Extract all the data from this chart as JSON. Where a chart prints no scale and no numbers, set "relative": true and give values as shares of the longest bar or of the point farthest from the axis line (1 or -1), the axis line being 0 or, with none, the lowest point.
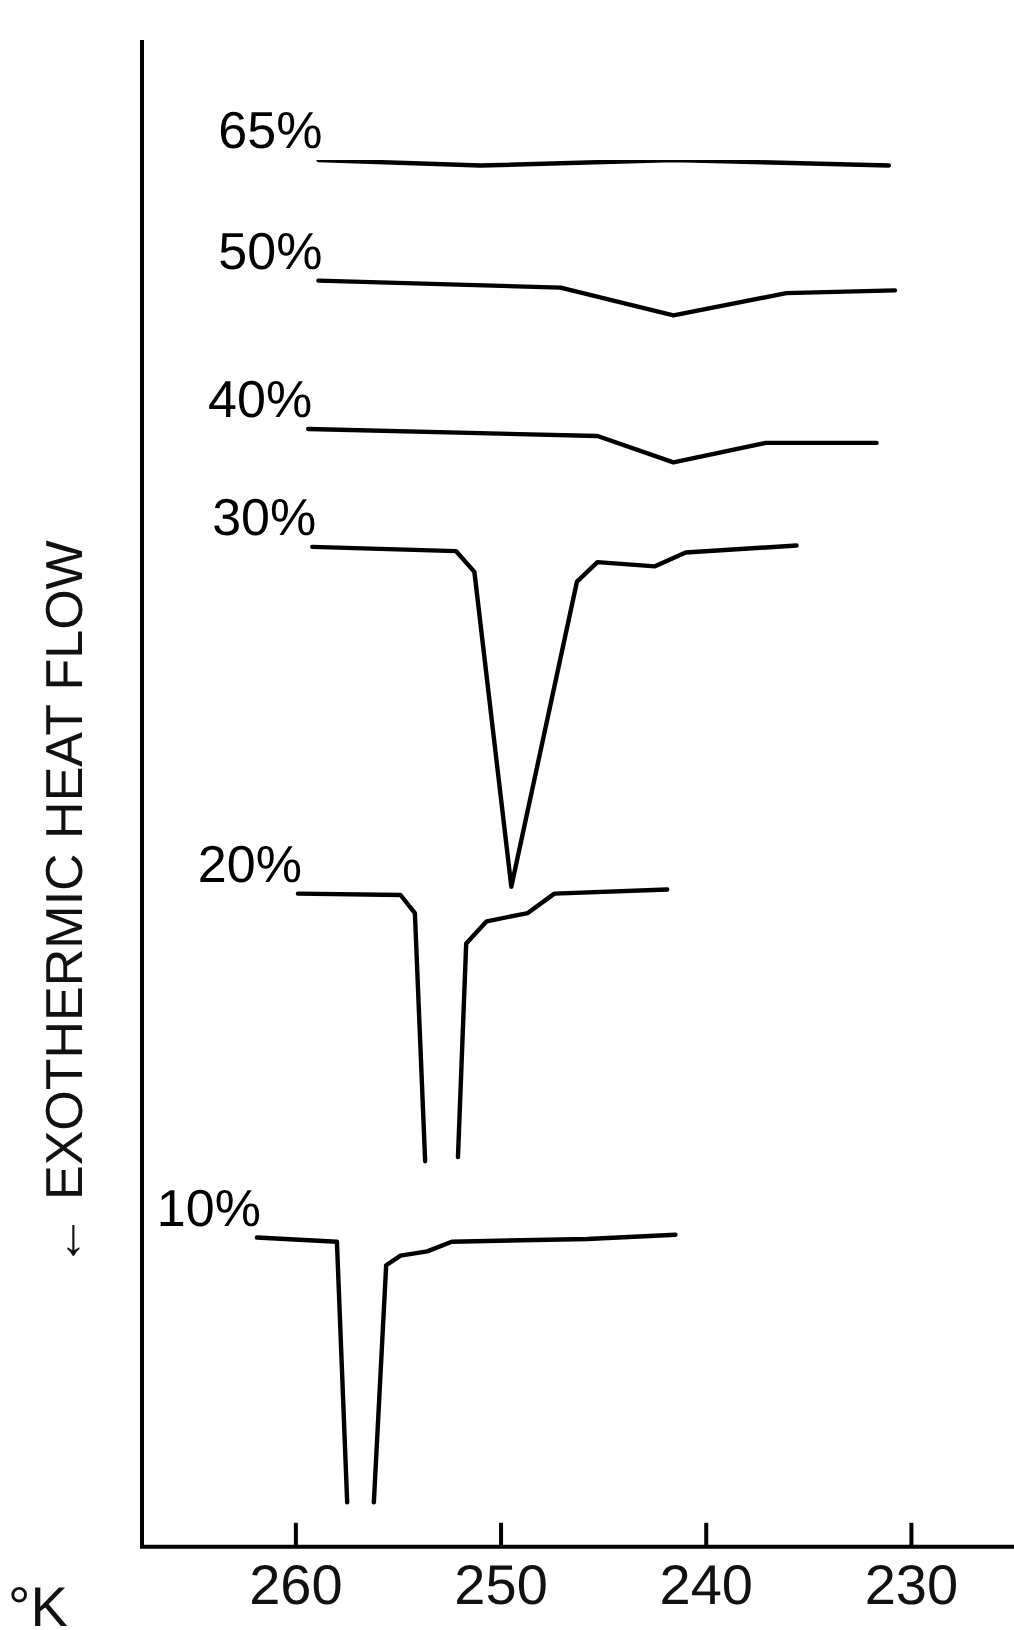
{
  "chart_data": {
    "type": "line",
    "xlabel": "°K",
    "ylabel": "← EXOTHERMIC HEAT FLOW",
    "relative": true,
    "xlim": [
      267.5,
      225
    ],
    "xticks": [
      260,
      250,
      240,
      230
    ],
    "grid": false,
    "legend": false,
    "marker": "none",
    "line_style": "solid",
    "series": [
      {
        "name": "65%",
        "color": "#000000",
        "x": [
          258.9,
          251,
          241.6,
          231.1
        ],
        "values": [
          1.0,
          0.996,
          1.0,
          0.996
        ]
      },
      {
        "name": "50%",
        "color": "#000000",
        "x": [
          258.9,
          247.1,
          241.6,
          236.1,
          230.8
        ],
        "values": [
          0.913,
          0.908,
          0.888,
          0.904,
          0.906
        ]
      },
      {
        "name": "40%",
        "color": "#000000",
        "x": [
          259.4,
          245.3,
          241.6,
          237.1,
          231.7
        ],
        "values": [
          0.806,
          0.801,
          0.782,
          0.796,
          0.796
        ]
      },
      {
        "name": "30%",
        "color": "#000000",
        "x": [
          259.2,
          252.2,
          251.3,
          249.5,
          246.3,
          245.3,
          242.5,
          241,
          235.6
        ],
        "values": [
          0.721,
          0.718,
          0.703,
          0.476,
          0.696,
          0.71,
          0.707,
          0.717,
          0.722
        ]
      },
      {
        "name": "20%",
        "color": "#000000",
        "x": [
          259.9,
          254.9,
          254.2,
          253.7,
          252.9,
          252.1,
          251.7,
          250.7,
          248.7,
          247.4,
          241.9
        ],
        "values": [
          0.471,
          0.47,
          0.457,
          0.278,
          null,
          0.281,
          0.435,
          0.451,
          0.457,
          0.471,
          0.474
        ]
      },
      {
        "name": "10%",
        "color": "#000000",
        "x": [
          261.9,
          258,
          257.5,
          256.9,
          256.2,
          255.6,
          254.9,
          253.6,
          252.4,
          245.8,
          241.5
        ],
        "values": [
          0.223,
          0.22,
          0.032,
          null,
          0.032,
          0.203,
          0.21,
          0.213,
          0.22,
          0.222,
          0.225
        ]
      }
    ]
  }
}
